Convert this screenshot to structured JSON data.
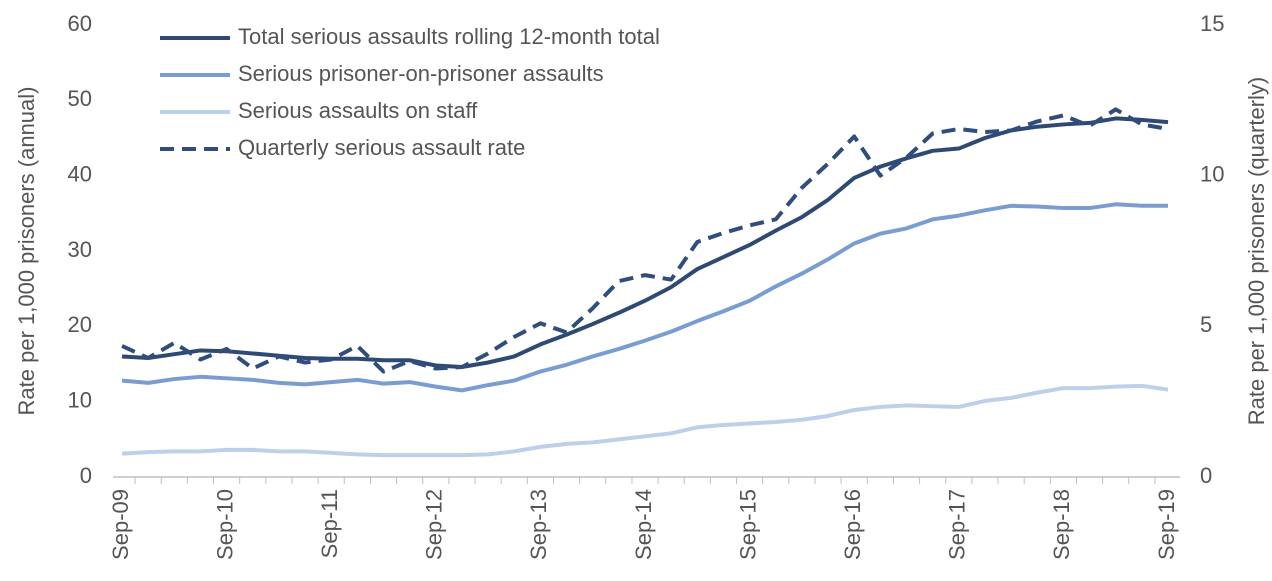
{
  "chart_data": {
    "type": "line",
    "y_label": "Rate per 1,000 prisoners (annual)",
    "y2_label": "Rate per 1,000 prisoners (quarterly)",
    "categories": [
      "Sep-09",
      null,
      null,
      null,
      "Sep-10",
      null,
      null,
      null,
      "Sep-11",
      null,
      null,
      null,
      "Sep-12",
      null,
      null,
      null,
      "Sep-13",
      null,
      null,
      null,
      "Sep-14",
      null,
      null,
      null,
      "Sep-15",
      null,
      null,
      null,
      "Sep-16",
      null,
      null,
      null,
      "Sep-17",
      null,
      null,
      null,
      "Sep-18",
      null,
      null,
      null,
      "Sep-19"
    ],
    "series": [
      {
        "name": "Total serious assaults rolling 12-month total",
        "color": "#2e4a72",
        "dashed": false,
        "values": [
          16,
          15.8,
          16.3,
          16.8,
          16.7,
          16.4,
          16.1,
          15.8,
          15.7,
          15.7,
          15.5,
          15.5,
          14.8,
          14.6,
          15.2,
          16.0,
          17.6,
          18.9,
          20.3,
          21.8,
          23.4,
          25.2,
          27.6,
          29.2,
          30.8,
          32.7,
          34.5,
          36.8,
          39.7,
          41.2,
          42.3,
          43.3,
          43.6,
          45,
          46,
          46.5,
          46.8,
          47,
          47.6,
          47.4,
          47.1
        ]
      },
      {
        "name": "Serious prisoner-on-prisoner assaults",
        "color": "#7a9dd1",
        "dashed": false,
        "values": [
          12.8,
          12.5,
          13.0,
          13.3,
          13.1,
          12.9,
          12.5,
          12.3,
          12.6,
          12.9,
          12.4,
          12.6,
          12.0,
          11.5,
          12.2,
          12.8,
          14.0,
          14.9,
          16.0,
          17.0,
          18.1,
          19.3,
          20.7,
          22.0,
          23.4,
          25.3,
          27.0,
          28.9,
          31.0,
          32.3,
          33.0,
          34.2,
          34.7,
          35.4,
          36.0,
          35.9,
          35.7,
          35.7,
          36.2,
          36.0,
          36.0
        ]
      },
      {
        "name": "Serious assaults on staff",
        "color": "#bdd0ea",
        "dashed": false,
        "values": [
          3.1,
          3.3,
          3.4,
          3.4,
          3.6,
          3.6,
          3.4,
          3.4,
          3.2,
          3.0,
          2.9,
          2.9,
          2.9,
          2.9,
          3.0,
          3.4,
          4.0,
          4.4,
          4.6,
          5.0,
          5.4,
          5.8,
          6.6,
          6.9,
          7.1,
          7.3,
          7.6,
          8.1,
          8.9,
          9.3,
          9.5,
          9.4,
          9.3,
          10.1,
          10.5,
          11.2,
          11.8,
          11.8,
          12.0,
          12.1,
          11.6
        ]
      },
      {
        "name": "Quarterly serious assault rate",
        "color": "#2f4d7d",
        "dashed": true,
        "axis": "y2",
        "values": [
          4.35,
          3.95,
          4.45,
          3.9,
          4.25,
          3.6,
          4.0,
          3.8,
          3.9,
          4.35,
          3.5,
          3.85,
          3.6,
          3.65,
          4.1,
          4.65,
          5.1,
          4.8,
          5.6,
          6.5,
          6.7,
          6.55,
          7.8,
          8.1,
          8.35,
          8.55,
          9.6,
          10.4,
          11.3,
          10.0,
          10.6,
          11.4,
          11.55,
          11.45,
          11.5,
          11.8,
          12.0,
          11.65,
          12.2,
          11.7,
          11.55
        ]
      }
    ],
    "ylim": [
      0,
      60
    ],
    "yticks": [
      0,
      10,
      20,
      30,
      40,
      50,
      60
    ],
    "y2lim": [
      0,
      15
    ],
    "y2ticks": [
      0,
      5,
      10,
      15
    ]
  }
}
